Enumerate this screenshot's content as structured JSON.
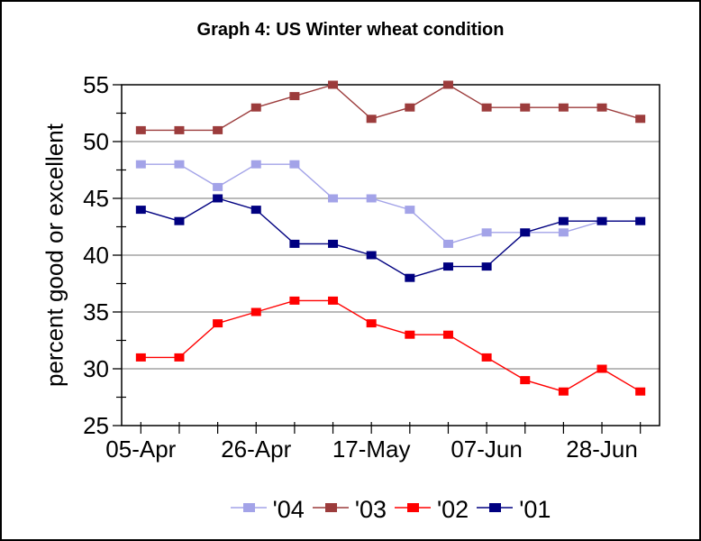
{
  "title": "Graph 4: US Winter wheat condition",
  "y_axis": {
    "label": "percent good or excellent",
    "ticks": [
      25,
      30,
      35,
      40,
      45,
      50,
      55
    ],
    "minor_ticks": [
      27.5,
      32.5,
      37.5,
      42.5,
      47.5,
      52.5
    ]
  },
  "x_axis": {
    "tick_labels": [
      "05-Apr",
      "26-Apr",
      "17-May",
      "07-Jun",
      "28-Jun"
    ],
    "tick_indices": [
      0,
      3,
      6,
      9,
      12
    ]
  },
  "legend": {
    "items": [
      {
        "label": "'04",
        "color": "#A3A3E8"
      },
      {
        "label": "'03",
        "color": "#9C3C3C"
      },
      {
        "label": "'02",
        "color": "#FF0000"
      },
      {
        "label": "'01",
        "color": "#000080"
      }
    ]
  },
  "colors": {
    "gridline": "#909090",
    "axis": "#000000",
    "background": "#FFFFFF"
  },
  "chart_data": {
    "type": "line",
    "title": "Graph 4: US Winter wheat condition",
    "ylabel": "percent good or excellent",
    "ylim": [
      25,
      55
    ],
    "y_major_step": 5,
    "y_minor_step": 2.5,
    "grid": "horizontal-major",
    "legend_position": "bottom",
    "num_points": 14,
    "x_tick_labels": [
      {
        "index": 0,
        "label": "05-Apr"
      },
      {
        "index": 3,
        "label": "26-Apr"
      },
      {
        "index": 6,
        "label": "17-May"
      },
      {
        "index": 9,
        "label": "07-Jun"
      },
      {
        "index": 12,
        "label": "28-Jun"
      }
    ],
    "series": [
      {
        "name": "'04",
        "color": "#A3A3E8",
        "marker": "square",
        "values": [
          48,
          48,
          46,
          48,
          48,
          45,
          45,
          44,
          41,
          42,
          42,
          42,
          43,
          43
        ]
      },
      {
        "name": "'03",
        "color": "#9C3C3C",
        "marker": "square",
        "values": [
          51,
          51,
          51,
          53,
          54,
          55,
          52,
          53,
          55,
          53,
          53,
          53,
          53,
          52
        ]
      },
      {
        "name": "'02",
        "color": "#FF0000",
        "marker": "square",
        "values": [
          31,
          31,
          34,
          35,
          36,
          36,
          34,
          33,
          33,
          31,
          29,
          28,
          30,
          28
        ]
      },
      {
        "name": "'01",
        "color": "#000080",
        "marker": "square",
        "values": [
          44,
          43,
          45,
          44,
          41,
          41,
          40,
          38,
          39,
          39,
          42,
          43,
          43,
          43
        ]
      }
    ]
  }
}
